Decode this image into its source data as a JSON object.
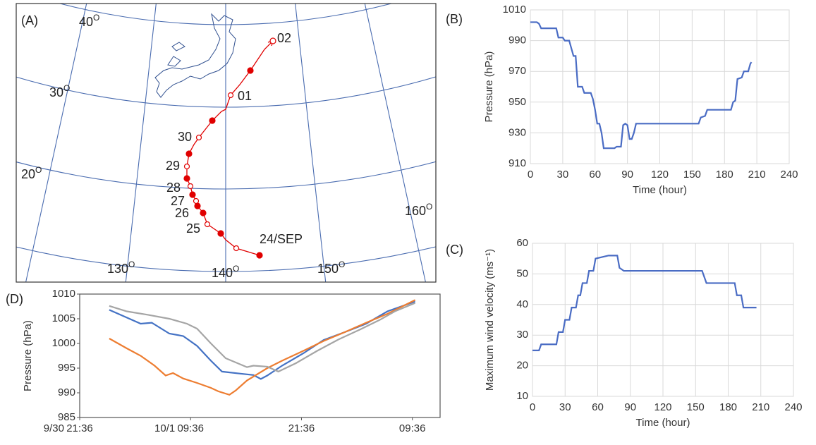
{
  "map": {
    "panel_label": "(A)",
    "degree_mark": "O",
    "latitude_labels": [
      "40",
      "30",
      "20"
    ],
    "longitude_labels": [
      "130",
      "140",
      "150",
      "160"
    ],
    "track_labels": [
      "02",
      "01",
      "30",
      "29",
      "28",
      "27",
      "26",
      "25",
      "24/SEP"
    ]
  },
  "chart_data": [
    {
      "type": "line",
      "panel_label": "(B)",
      "ylabel": "Pressure (hPa)",
      "xlabel": "Time (hour)",
      "x": [
        0,
        6,
        8,
        10,
        24,
        26,
        30,
        32,
        36,
        38,
        40,
        42,
        44,
        48,
        50,
        56,
        58,
        60,
        62,
        64,
        66,
        68,
        78,
        80,
        84,
        86,
        88,
        90,
        92,
        94,
        96,
        98,
        100,
        156,
        158,
        162,
        164,
        180,
        186,
        188,
        190,
        192,
        196,
        198,
        202,
        204,
        205
      ],
      "series": [
        {
          "color": "#4a6cc4",
          "values": [
            1002,
            1002,
            1001,
            998,
            998,
            992,
            992,
            990,
            990,
            985,
            980,
            980,
            960,
            960,
            956,
            956,
            952,
            945,
            936,
            936,
            930,
            920,
            920,
            921,
            921,
            935,
            936,
            935,
            926,
            926,
            930,
            936,
            936,
            936,
            940,
            941,
            945,
            945,
            945,
            950,
            951,
            965,
            966,
            970,
            970,
            975,
            976
          ]
        }
      ],
      "xlim": [
        0,
        240
      ],
      "ylim": [
        910,
        1010
      ],
      "xticks": [
        0,
        30,
        60,
        90,
        120,
        150,
        180,
        210,
        240
      ],
      "yticks": [
        910,
        930,
        950,
        970,
        990,
        1010
      ],
      "grid": true
    },
    {
      "type": "line",
      "panel_label": "(C)",
      "ylabel": "Maximum wind velocity (ms⁻¹)",
      "xlabel": "Time (hour)",
      "x": [
        0,
        6,
        8,
        22,
        24,
        28,
        30,
        34,
        36,
        40,
        42,
        44,
        46,
        50,
        52,
        56,
        58,
        70,
        78,
        80,
        84,
        156,
        160,
        186,
        188,
        192,
        194,
        206
      ],
      "series": [
        {
          "color": "#4a6cc4",
          "values": [
            25,
            25,
            27,
            27,
            31,
            31,
            35,
            35,
            39,
            39,
            43,
            43,
            47,
            47,
            51,
            51,
            55,
            56,
            56,
            52,
            51,
            51,
            47,
            47,
            43,
            43,
            39,
            39
          ]
        }
      ],
      "xlim": [
        0,
        240
      ],
      "ylim": [
        10,
        60
      ],
      "xticks": [
        0,
        30,
        60,
        90,
        120,
        150,
        180,
        210,
        240
      ],
      "yticks": [
        10,
        20,
        30,
        40,
        50,
        60
      ],
      "grid": true
    },
    {
      "type": "line",
      "panel_label": "(D)",
      "ylabel": "Pressure (hPa)",
      "series": [
        {
          "color": "#4472c4",
          "x": [
            3.2,
            6.6,
            7.8,
            9.7,
            11.2,
            12.7,
            14.2,
            15.4,
            17.3,
            18.8,
            19.6,
            20.3,
            21.9,
            24.2,
            26.4,
            28.7,
            31,
            33.3,
            36.3
          ],
          "values": [
            1006.8,
            1004,
            1004.2,
            1002,
            1001.5,
            999.5,
            996.5,
            994.3,
            993.9,
            993.6,
            992.8,
            993.5,
            995.5,
            998,
            1000.7,
            1002.3,
            1004,
            1006.5,
            1008.5
          ]
        },
        {
          "color": "#ed7d31",
          "x": [
            3.2,
            5.1,
            6.6,
            8.1,
            9.3,
            10.1,
            11.2,
            12.7,
            14.2,
            15,
            16.2,
            16.9,
            18.1,
            20.3,
            21.9,
            24.2,
            26.4,
            28.7,
            31,
            33.3,
            36.3
          ],
          "values": [
            1001,
            999,
            997.5,
            995.5,
            993.5,
            994,
            992.9,
            992,
            991,
            990.3,
            989.6,
            990.5,
            992.5,
            995,
            996.5,
            998.5,
            1000.5,
            1002.3,
            1004.2,
            1006,
            1008.8
          ]
        },
        {
          "color": "#a5a5a5",
          "x": [
            3.2,
            5.1,
            7.4,
            9.7,
            11.6,
            12.7,
            14.2,
            15.8,
            18.1,
            18.8,
            20.3,
            21.5,
            23.4,
            25.7,
            28,
            30.2,
            32.5,
            34.1,
            36.3
          ],
          "values": [
            1007.6,
            1006.5,
            1005.8,
            1005,
            1004,
            1003,
            1000,
            997,
            995.2,
            995.5,
            995.3,
            994.3,
            996,
            998.5,
            1000.8,
            1002.7,
            1004.8,
            1006.5,
            1008.2
          ]
        }
      ],
      "xlim": [
        0,
        39
      ],
      "ylim": [
        985,
        1010
      ],
      "xticks": [
        {
          "value": 0,
          "label": "21:36"
        },
        {
          "value": 12,
          "label": "09:36"
        },
        {
          "value": 24,
          "label": "21:36"
        },
        {
          "value": 36,
          "label": "09:36"
        }
      ],
      "date_labels": [
        {
          "value": 0,
          "label": "9/30"
        },
        {
          "value": 12,
          "label": "10/1"
        }
      ],
      "yticks": [
        985,
        990,
        995,
        1000,
        1005,
        1010
      ],
      "grid": false
    }
  ]
}
